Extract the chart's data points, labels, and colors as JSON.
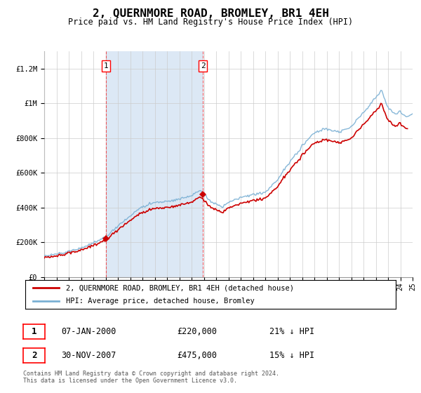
{
  "title": "2, QUERNMORE ROAD, BROMLEY, BR1 4EH",
  "subtitle": "Price paid vs. HM Land Registry's House Price Index (HPI)",
  "background_color": "#ffffff",
  "plot_bg_color": "#ffffff",
  "shade_between_sales_color": "#dce8f5",
  "grid_color": "#cccccc",
  "ylim": [
    0,
    1300000
  ],
  "yticks": [
    0,
    200000,
    400000,
    600000,
    800000,
    1000000,
    1200000
  ],
  "ytick_labels": [
    "£0",
    "£200K",
    "£400K",
    "£600K",
    "£800K",
    "£1M",
    "£1.2M"
  ],
  "hpi_color": "#7ab0d4",
  "price_color": "#cc0000",
  "sale1_date": 2000.03,
  "sale1_price": 220000,
  "sale1_label": "1",
  "sale2_date": 2007.92,
  "sale2_price": 475000,
  "sale2_label": "2",
  "legend_line1": "2, QUERNMORE ROAD, BROMLEY, BR1 4EH (detached house)",
  "legend_line2": "HPI: Average price, detached house, Bromley",
  "table_row1": [
    "1",
    "07-JAN-2000",
    "£220,000",
    "21% ↓ HPI"
  ],
  "table_row2": [
    "2",
    "30-NOV-2007",
    "£475,000",
    "15% ↓ HPI"
  ],
  "footnote": "Contains HM Land Registry data © Crown copyright and database right 2024.\nThis data is licensed under the Open Government Licence v3.0.",
  "xmin": 1995,
  "xmax": 2025
}
